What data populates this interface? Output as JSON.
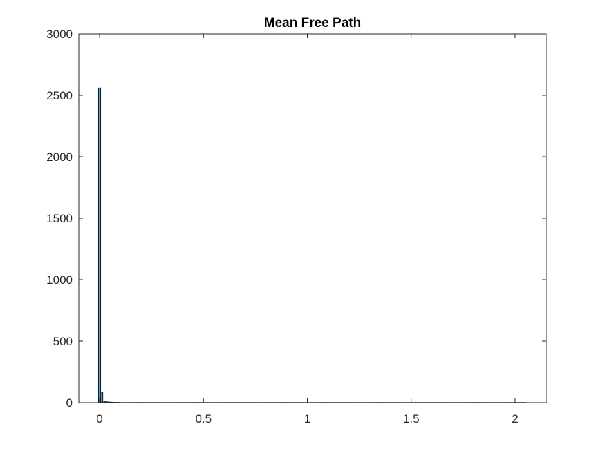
{
  "chart_data": {
    "type": "bar",
    "title": "Mean Free Path",
    "xlabel": "",
    "ylabel": "",
    "xlim": [
      -0.1,
      2.15
    ],
    "ylim": [
      0,
      3000
    ],
    "x_ticks": [
      "0",
      "0.5",
      "1",
      "1.5",
      "2"
    ],
    "x_tick_values": [
      0,
      0.5,
      1,
      1.5,
      2
    ],
    "y_ticks": [
      "0",
      "500",
      "1000",
      "1500",
      "2000",
      "2500",
      "3000"
    ],
    "y_tick_values": [
      0,
      500,
      1000,
      1500,
      2000,
      2500,
      3000
    ],
    "bin_width": 0.0103,
    "bins_start": -0.0052,
    "values": [
      2560,
      85,
      14,
      7,
      5,
      4,
      3,
      2,
      2,
      2,
      1,
      1,
      1,
      1,
      1,
      1,
      1,
      1,
      1,
      1,
      1,
      1,
      1,
      1,
      1,
      1,
      1,
      1,
      1,
      1,
      1,
      1,
      1,
      1,
      1,
      1,
      1,
      1,
      1,
      1,
      1,
      1,
      1,
      1,
      1,
      1,
      1,
      1,
      1,
      1,
      1,
      1,
      1,
      1,
      1,
      1,
      1,
      1,
      1,
      1,
      1,
      1,
      1,
      1,
      1,
      1,
      1,
      1,
      1,
      1,
      1,
      1,
      1,
      1,
      1,
      1,
      1,
      1,
      1,
      1,
      1,
      1,
      1,
      1,
      1,
      1,
      1,
      1,
      1,
      1,
      1,
      1,
      1,
      1,
      1,
      1,
      1,
      1,
      1,
      1,
      1,
      1,
      1,
      1,
      1,
      1,
      1,
      1,
      1,
      1,
      1,
      1,
      1,
      1,
      1,
      1,
      1,
      1,
      1,
      1,
      1,
      1,
      1,
      1,
      1,
      1,
      1,
      1,
      1,
      1,
      1,
      1,
      1,
      1,
      1,
      1,
      1,
      1,
      1,
      1,
      1,
      1,
      1,
      1,
      1,
      1,
      1,
      1,
      1,
      1,
      1,
      1,
      1,
      1,
      1,
      1,
      1,
      1,
      1,
      1,
      1,
      1,
      1,
      1,
      1,
      1,
      1,
      1,
      1,
      1,
      1,
      1,
      1,
      1,
      1,
      1,
      1,
      1,
      1,
      1,
      1,
      1,
      1,
      1,
      1,
      1,
      1,
      1,
      1,
      1,
      1,
      1,
      1,
      1,
      1,
      1,
      1,
      1,
      1,
      1
    ],
    "grid": false,
    "colors": {
      "bar_fill": "#4d9fd6",
      "bar_edge": "#1a1a1a",
      "axes": "#262626"
    }
  }
}
